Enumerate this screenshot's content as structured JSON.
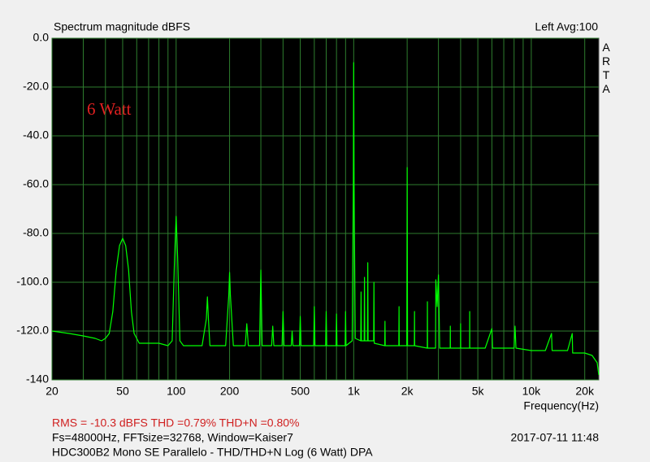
{
  "chart_data": {
    "type": "line",
    "title": "Spectrum magnitude dBFS",
    "channel_info": "Left  Avg:100",
    "brand": "ARTA",
    "annotation": "6 Watt",
    "x_label": "Frequency(Hz)",
    "footer": {
      "stats": "RMS =  -10.3 dBFS   THD =0.79%   THD+N =0.80%",
      "settings": "Fs=48000Hz, FFTsize=32768, Window=Kaiser7",
      "timestamp": "2017-07-11  11:48",
      "description": "HDC300B2 Mono SE Parallelo - THD/THD+N Log (6 Watt)     DPA"
    },
    "x_scale": "log",
    "grid": true,
    "xlim": [
      20,
      24000
    ],
    "ylim": [
      -140,
      0
    ],
    "xticks": [
      20,
      50,
      100,
      200,
      500,
      {
        "value": 1000,
        "label": "1k"
      },
      {
        "value": 2000,
        "label": "2k"
      },
      {
        "value": 5000,
        "label": "5k"
      },
      {
        "value": 10000,
        "label": "10k"
      },
      {
        "value": 20000,
        "label": "20k"
      }
    ],
    "x_minor_grid": [
      30,
      40,
      60,
      70,
      80,
      90,
      300,
      400,
      600,
      700,
      800,
      900,
      3000,
      4000,
      6000,
      7000,
      8000,
      9000
    ],
    "yticks": [
      {
        "value": 0,
        "label": "0.0"
      },
      {
        "value": -20,
        "label": "-20.0"
      },
      {
        "value": -40,
        "label": "-40.0"
      },
      {
        "value": -60,
        "label": "-60.0"
      },
      {
        "value": -80,
        "label": "-80.0"
      },
      {
        "value": -100,
        "label": "-100.0"
      },
      {
        "value": -120,
        "label": "-120.0"
      },
      {
        "value": -140,
        "label": "-140"
      }
    ],
    "series": [
      {
        "color": "#00ff00",
        "x": [
          20,
          25,
          30,
          35,
          38,
          40,
          42,
          44,
          46,
          48,
          50,
          52,
          54,
          56,
          58,
          62,
          70,
          80,
          90,
          95,
          98,
          100,
          102,
          105,
          110,
          140,
          148,
          150,
          152,
          155,
          190,
          198,
          200,
          202,
          210,
          245,
          250,
          255,
          295,
          300,
          305,
          345,
          350,
          355,
          395,
          400,
          405,
          445,
          450,
          455,
          495,
          500,
          505,
          595,
          600,
          605,
          695,
          700,
          705,
          795,
          800,
          805,
          895,
          900,
          905,
          980,
          995,
          1000,
          1005,
          1020,
          1095,
          1100,
          1105,
          1145,
          1150,
          1155,
          1195,
          1200,
          1205,
          1295,
          1300,
          1305,
          1495,
          1500,
          1505,
          1795,
          1800,
          1805,
          1990,
          2000,
          2010,
          2195,
          2200,
          2205,
          2595,
          2600,
          2605,
          2890,
          2900,
          2950,
          3000,
          3050,
          3495,
          3500,
          3505,
          3995,
          4000,
          4005,
          4495,
          4500,
          4505,
          5500,
          6000,
          6050,
          8000,
          8100,
          8200,
          10000,
          12000,
          13000,
          13100,
          16000,
          17000,
          17100,
          20000,
          22000,
          23500,
          24000
        ],
        "values": [
          -120,
          -121,
          -122,
          -123,
          -124,
          -123,
          -121,
          -112,
          -95,
          -85,
          -82,
          -85,
          -95,
          -112,
          -121,
          -125,
          -125,
          -125,
          -126,
          -124,
          -90,
          -73,
          -90,
          -124,
          -126,
          -126,
          -115,
          -106,
          -115,
          -126,
          -126,
          -105,
          -96,
          -105,
          -126,
          -126,
          -117,
          -126,
          -126,
          -95,
          -126,
          -126,
          -118,
          -126,
          -126,
          -112,
          -126,
          -126,
          -120,
          -126,
          -126,
          -114,
          -126,
          -126,
          -110,
          -126,
          -126,
          -112,
          -126,
          -126,
          -113,
          -126,
          -126,
          -112,
          -126,
          -124,
          -60,
          -10,
          -60,
          -123,
          -124,
          -104,
          -124,
          -124,
          -98,
          -124,
          -124,
          -92,
          -124,
          -124,
          -100,
          -125,
          -126,
          -116,
          -126,
          -126,
          -110,
          -126,
          -126,
          -53,
          -126,
          -126,
          -112,
          -126,
          -127,
          -108,
          -127,
          -127,
          -99,
          -110,
          -97,
          -127,
          -127,
          -118,
          -127,
          -127,
          -117,
          -127,
          -127,
          -112,
          -127,
          -127,
          -119,
          -127,
          -127,
          -118,
          -127,
          -128,
          -128,
          -121,
          -128,
          -128,
          -121,
          -129,
          -129,
          -130,
          -133,
          -138
        ]
      }
    ]
  }
}
